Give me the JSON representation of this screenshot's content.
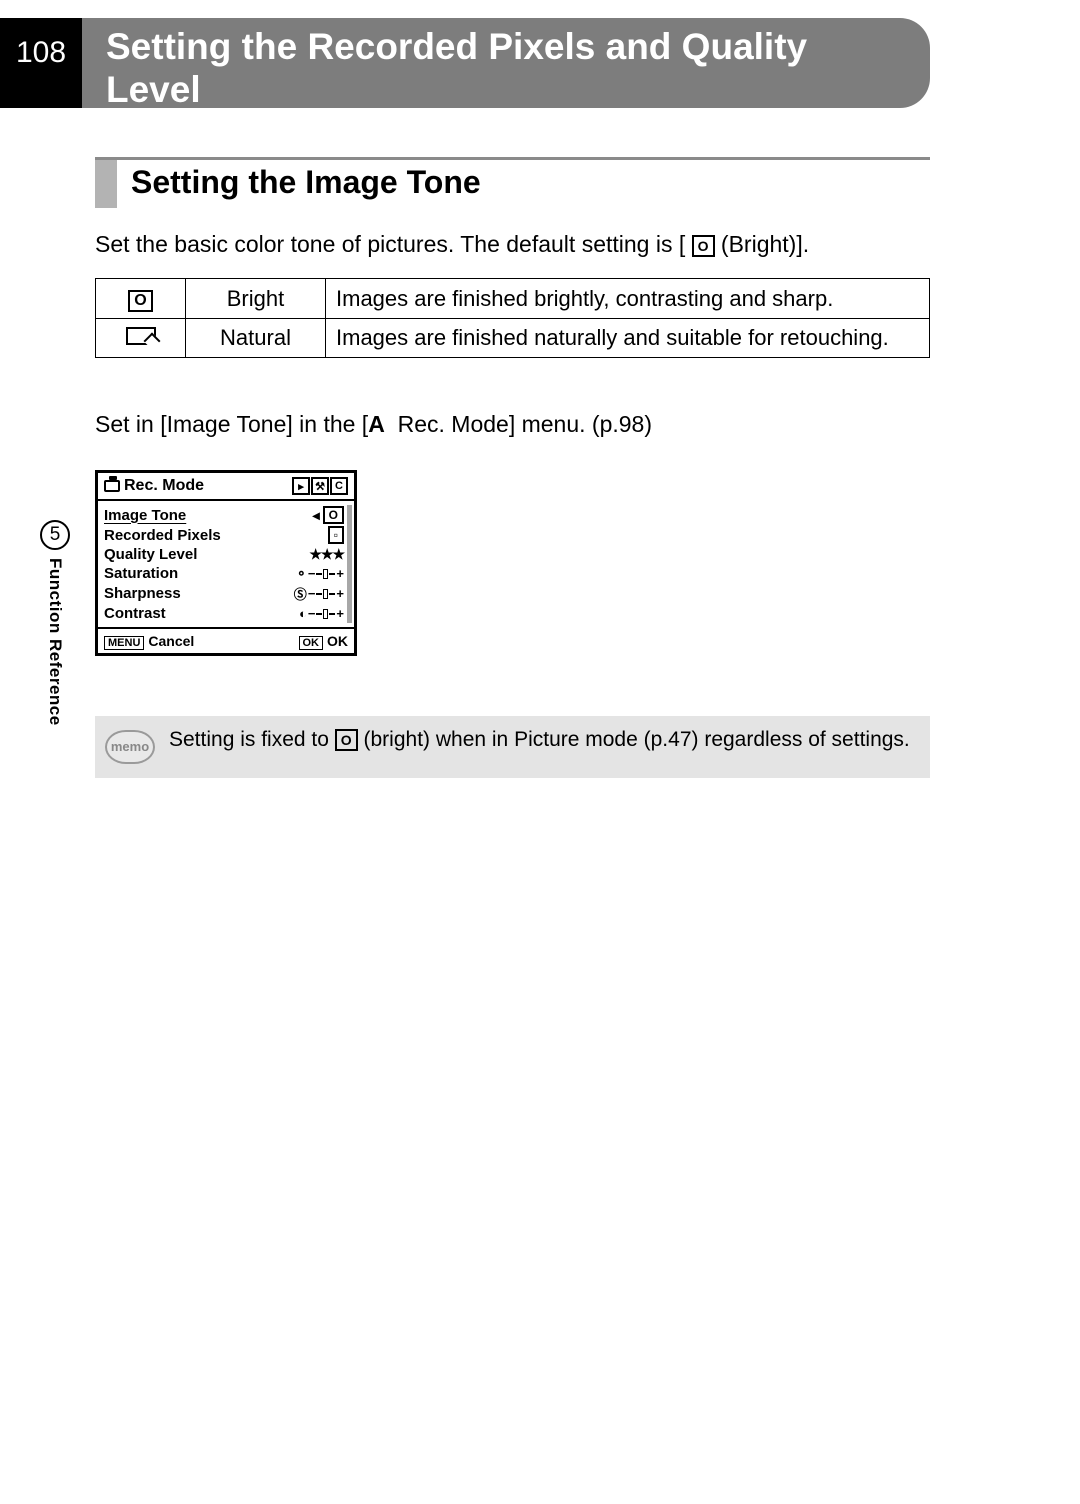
{
  "page_number": "108",
  "title": "Setting the Recorded Pixels and Quality Level",
  "section_header": "Setting the Image Tone",
  "intro_pre": "Set the basic color tone of pictures. The default setting is [",
  "intro_icon_text": "O",
  "intro_post": " (Bright)].",
  "tone_table": {
    "rows": [
      {
        "label": "Bright",
        "desc": "Images are finished brightly, contrasting and sharp."
      },
      {
        "label": "Natural",
        "desc": "Images are finished naturally and suitable for retouching."
      }
    ]
  },
  "menu_hint_pre": "Set in [Image Tone] in the [",
  "menu_hint_bold": "A",
  "menu_hint_post": "  Rec. Mode] menu. (p.98)",
  "camera_menu": {
    "title": "Rec. Mode",
    "tabs_text": [
      "▸",
      "⚒",
      "C"
    ],
    "items": [
      {
        "label": "Image Tone",
        "value_boxed": "O",
        "selected": true
      },
      {
        "label": "Recorded Pixels",
        "value_boxed": "▫"
      },
      {
        "label": "Quality Level",
        "value_stars": "★★★"
      },
      {
        "label": "Saturation",
        "value_slider_prefix": "⚬"
      },
      {
        "label": "Sharpness",
        "value_slider_prefix": "Ⓢ"
      },
      {
        "label": "Contrast",
        "value_slider_prefix": "◐"
      }
    ],
    "footer_left_btn": "MENU",
    "footer_left_text": "Cancel",
    "footer_right_btn": "OK",
    "footer_right_text": "OK"
  },
  "memo": {
    "icon_text": "memo",
    "text_pre": "Setting is fixed to ",
    "text_post": " (bright) when in Picture mode (p.47) regardless of settings."
  },
  "side_tab": {
    "number": "5",
    "text": "Function Reference"
  },
  "colors": {
    "title_bg": "#7d7d7d",
    "section_rule": "#8a8a8a",
    "section_bar": "#b3b3b3",
    "memo_bg": "#e4e4e4"
  }
}
